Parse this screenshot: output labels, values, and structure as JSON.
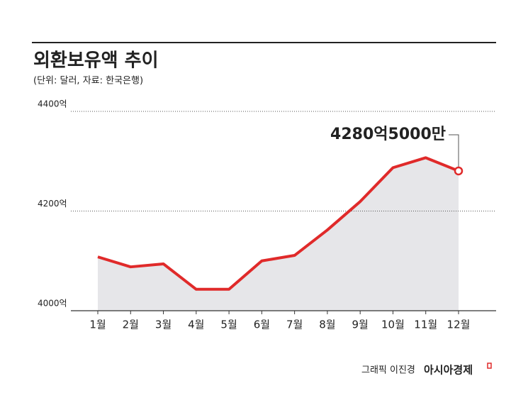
{
  "chart_data": {
    "type": "line",
    "title": "외환보유액 추이",
    "subtitle": "(단위: 달러, 자료: 한국은행)",
    "categories": [
      "1월",
      "2월",
      "3월",
      "4월",
      "5월",
      "6월",
      "7월",
      "8월",
      "9월",
      "10월",
      "11월",
      "12월"
    ],
    "values": [
      4108,
      4088,
      4094,
      4043,
      4043,
      4100,
      4111,
      4162,
      4219,
      4287,
      4307,
      4280.5
    ],
    "value_labels": [
      null,
      null,
      null,
      null,
      null,
      null,
      null,
      null,
      null,
      null,
      null,
      "4280억5000만"
    ],
    "color": "#e02a2a",
    "area_color": "#e6e6e9",
    "ylim": [
      4000,
      4400
    ],
    "yticks": [
      {
        "value": 4000,
        "label": "4000억"
      },
      {
        "value": 4200,
        "label": "4200억"
      },
      {
        "value": 4400,
        "label": "4400억"
      }
    ],
    "grid": true,
    "credit": "그래픽 이진경",
    "brand": "아시아경제"
  }
}
